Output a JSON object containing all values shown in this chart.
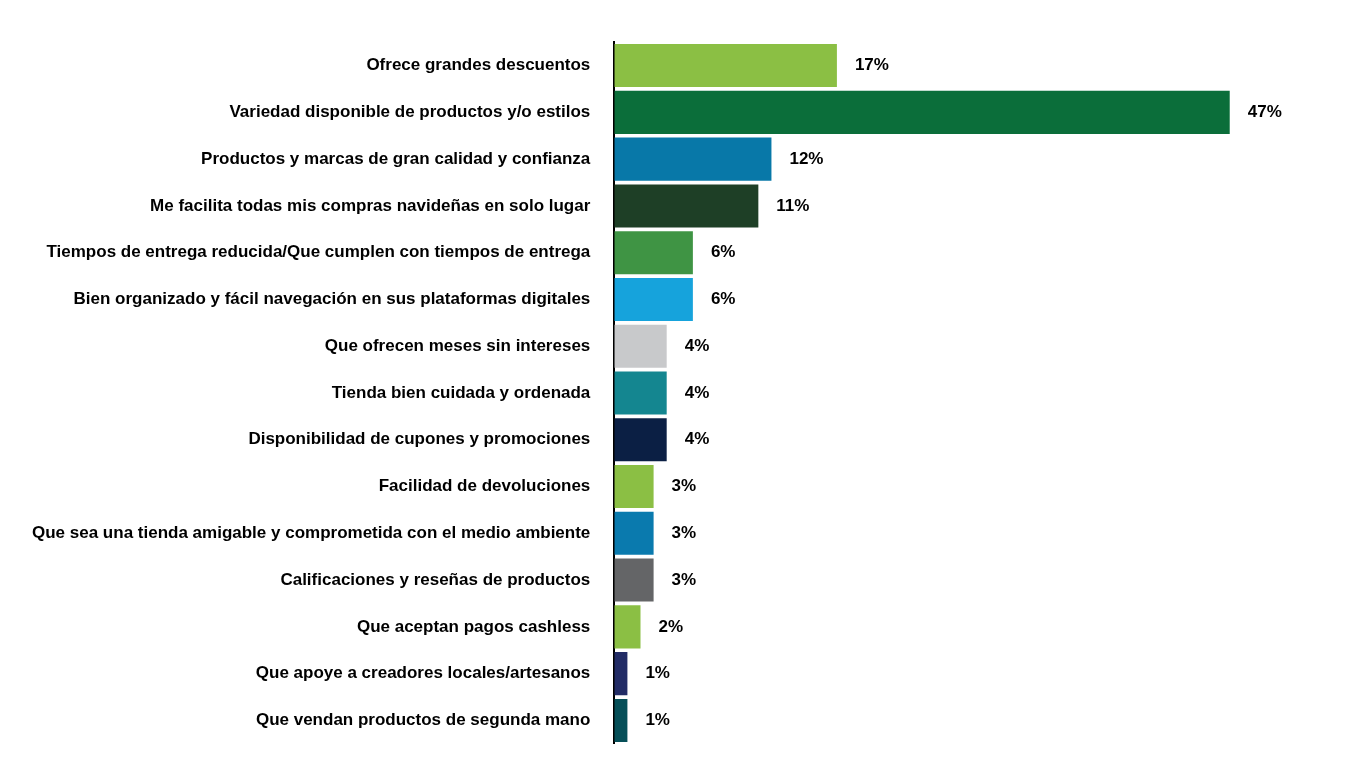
{
  "chart_data": {
    "type": "bar",
    "orientation": "horizontal",
    "categories": [
      "Ofrece grandes descuentos",
      "Variedad disponible de productos y/o estilos",
      "Productos y marcas de gran calidad y confianza",
      "Me facilita todas mis compras navideñas en solo lugar",
      "Tiempos de entrega reducida/Que cumplen con tiempos de entrega",
      "Bien organizado y fácil navegación en sus plataformas digitales",
      "Que ofrecen meses sin intereses",
      "Tienda bien cuidada y ordenada",
      "Disponibilidad de cupones y promociones",
      "Facilidad de devoluciones",
      "Que sea una tienda amigable y comprometida con el medio ambiente",
      "Calificaciones y reseñas de productos",
      "Que aceptan pagos cashless",
      "Que apoye a creadores locales/artesanos",
      "Que vendan productos de segunda mano"
    ],
    "values": [
      17,
      47,
      12,
      11,
      6,
      6,
      4,
      4,
      4,
      3,
      3,
      3,
      2,
      1,
      1
    ],
    "value_labels": [
      "17%",
      "47%",
      "12%",
      "11%",
      "6%",
      "6%",
      "4%",
      "4%",
      "4%",
      "3%",
      "3%",
      "3%",
      "2%",
      "1%",
      "1%"
    ],
    "colors": [
      "#8bbf44",
      "#0b6e3a",
      "#0878a8",
      "#1e3f26",
      "#3f9444",
      "#16a3dc",
      "#c8c9cb",
      "#148690",
      "#0b1f44",
      "#8bbf44",
      "#0a7aae",
      "#646567",
      "#8bbf44",
      "#222c66",
      "#064f58"
    ],
    "legend": false
  }
}
